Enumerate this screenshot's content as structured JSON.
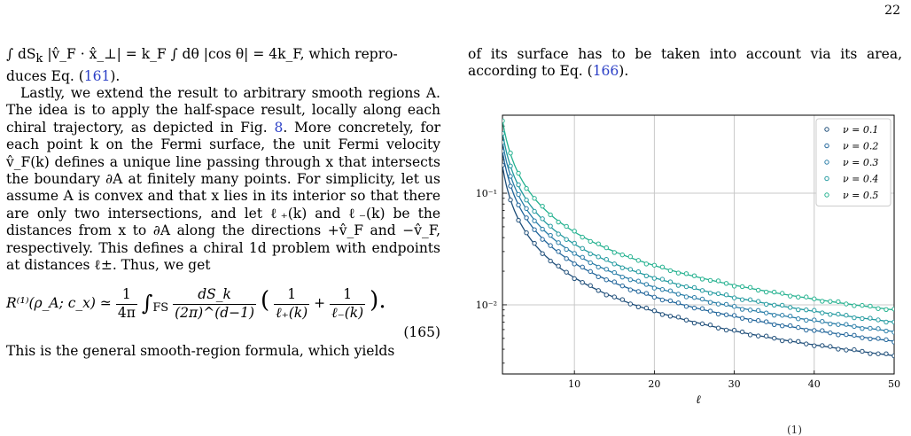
{
  "page": {
    "number": "22",
    "left_column": {
      "line1": "∫ dS",
      "line1_sub": "k",
      "line1_rest": "|v̂_F · x̂_⊥| = k_F ∫ dθ |cos θ| = 4k_F, which repro-",
      "line2_pre": "duces Eq. (",
      "line2_ref": "161",
      "line2_post": ").",
      "para2_a": "Lastly, we extend the result to arbitrary smooth regions A. The idea is to apply the half-space result, locally along each chiral trajectory, as depicted in Fig. ",
      "para2_ref": "8",
      "para2_b": ". More concretely, for each point k on the Fermi surface, the unit Fermi velocity v̂_F(k) defines a unique line passing through x that intersects the boundary ∂A at finitely many points. For simplicity, let us assume A is convex and that x lies in its interior so that there are only two intersections, and let ℓ₊(k) and ℓ₋(k) be the distances from x to ∂A along the directions +v̂_F and −v̂_F, respectively. This defines a chiral 1d problem with endpoints at distances ℓ±. Thus, we get",
      "eq_lhs": "R⁽¹⁾(ρ_A; c_x) ≃",
      "eq_pre_num": "1",
      "eq_pre_den": "4π",
      "eq_int_sub": "FS",
      "eq_mid_num": "dS_k",
      "eq_mid_den": "(2π)^(d−1)",
      "eq_f1_num": "1",
      "eq_f1_den": "ℓ₊(k)",
      "eq_f2_num": "1",
      "eq_f2_den": "ℓ₋(k)",
      "eq_number": "(165)",
      "last_line": "This is the general smooth-region formula, which yields"
    },
    "right_column": {
      "text_pre": "of its surface has to be taken into account via its area, according to Eq. (",
      "text_ref": "166",
      "text_post": ")."
    },
    "bottom_caption": "(1)",
    "accent_color": "#2b3fc6"
  },
  "chart_data": {
    "type": "line",
    "xlabel": "ℓ",
    "ylabel": "",
    "yscale": "log",
    "xlim": [
      1,
      50
    ],
    "ylim": [
      0.0024,
      0.5
    ],
    "xticks": [
      10,
      20,
      30,
      40,
      50
    ],
    "yticks": [
      {
        "value": 0.1,
        "label": "10⁻¹"
      },
      {
        "value": 0.01,
        "label": "10⁻²"
      }
    ],
    "grid": true,
    "legend_position": "top-right",
    "series": [
      {
        "name": "ν = 0.1",
        "color": "#1f4e79",
        "a": 0.175
      },
      {
        "name": "ν = 0.2",
        "color": "#21659a",
        "a": 0.236
      },
      {
        "name": "ν = 0.3",
        "color": "#2a7ea8",
        "a": 0.288
      },
      {
        "name": "ν = 0.4",
        "color": "#239aa0",
        "a": 0.35
      },
      {
        "name": "ν = 0.5",
        "color": "#26b290",
        "a": 0.45
      }
    ],
    "model": "y = a / ℓ"
  }
}
